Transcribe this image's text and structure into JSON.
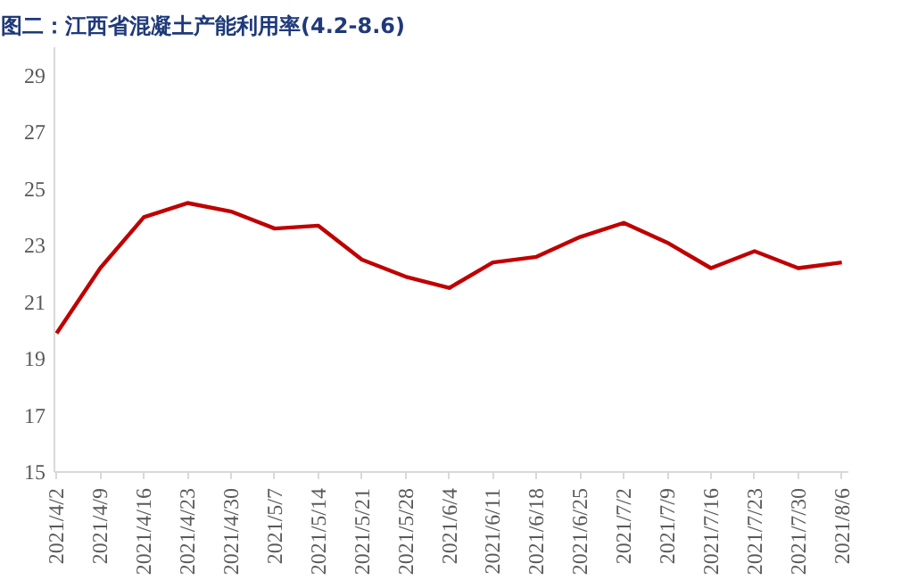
{
  "chart_data": {
    "type": "line",
    "title": "图二：江西省混凝土产能利用率(4.2-8.6)",
    "categories": [
      "2021/4/2",
      "2021/4/9",
      "2021/4/16",
      "2021/4/23",
      "2021/4/30",
      "2021/5/7",
      "2021/5/14",
      "2021/5/21",
      "2021/5/28",
      "2021/6/4",
      "2021/6/11",
      "2021/6/18",
      "2021/6/25",
      "2021/7/2",
      "2021/7/9",
      "2021/7/16",
      "2021/7/23",
      "2021/7/30",
      "2021/8/6"
    ],
    "series": [
      {
        "color": "#c00000",
        "values": [
          19.9,
          22.2,
          24.0,
          24.5,
          24.2,
          23.6,
          23.7,
          22.5,
          21.9,
          21.5,
          22.4,
          22.6,
          23.3,
          23.8,
          23.1,
          22.2,
          22.8,
          22.2,
          22.4
        ]
      }
    ],
    "ylim": [
      15,
      30
    ],
    "yticks": [
      15,
      17,
      19,
      21,
      23,
      25,
      27,
      29
    ],
    "grid": false,
    "marker": "none",
    "line_style": "solid"
  }
}
